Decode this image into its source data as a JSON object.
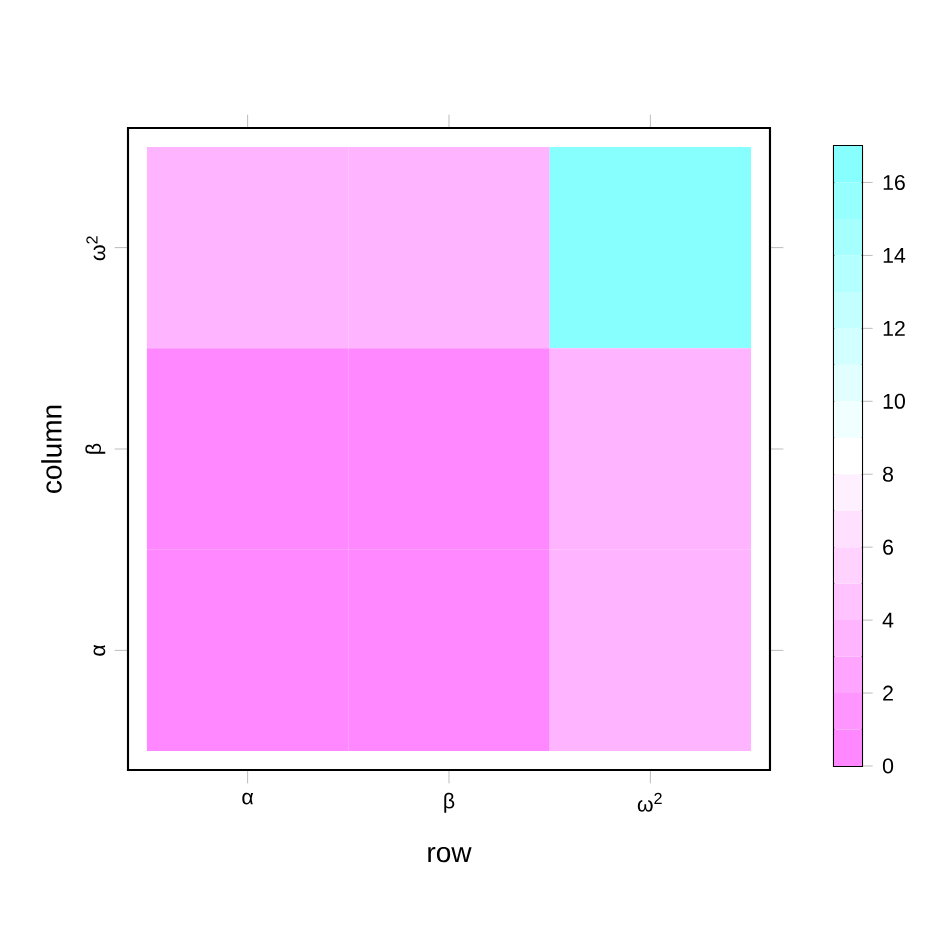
{
  "chart_data": {
    "type": "heatmap",
    "xlabel": "row",
    "ylabel": "column",
    "categories": [
      "α",
      "β",
      "ω$^{2}$"
    ],
    "y_categories": [
      "ω$^{2}$",
      "β",
      "α"
    ],
    "cells": [
      [
        3,
        3,
        16.5
      ],
      [
        0.5,
        0.5,
        3
      ],
      [
        0.5,
        0.5,
        3
      ]
    ],
    "clim": [
      0,
      17
    ],
    "cticks": [
      0,
      2,
      4,
      6,
      8,
      10,
      12,
      14,
      16
    ]
  }
}
